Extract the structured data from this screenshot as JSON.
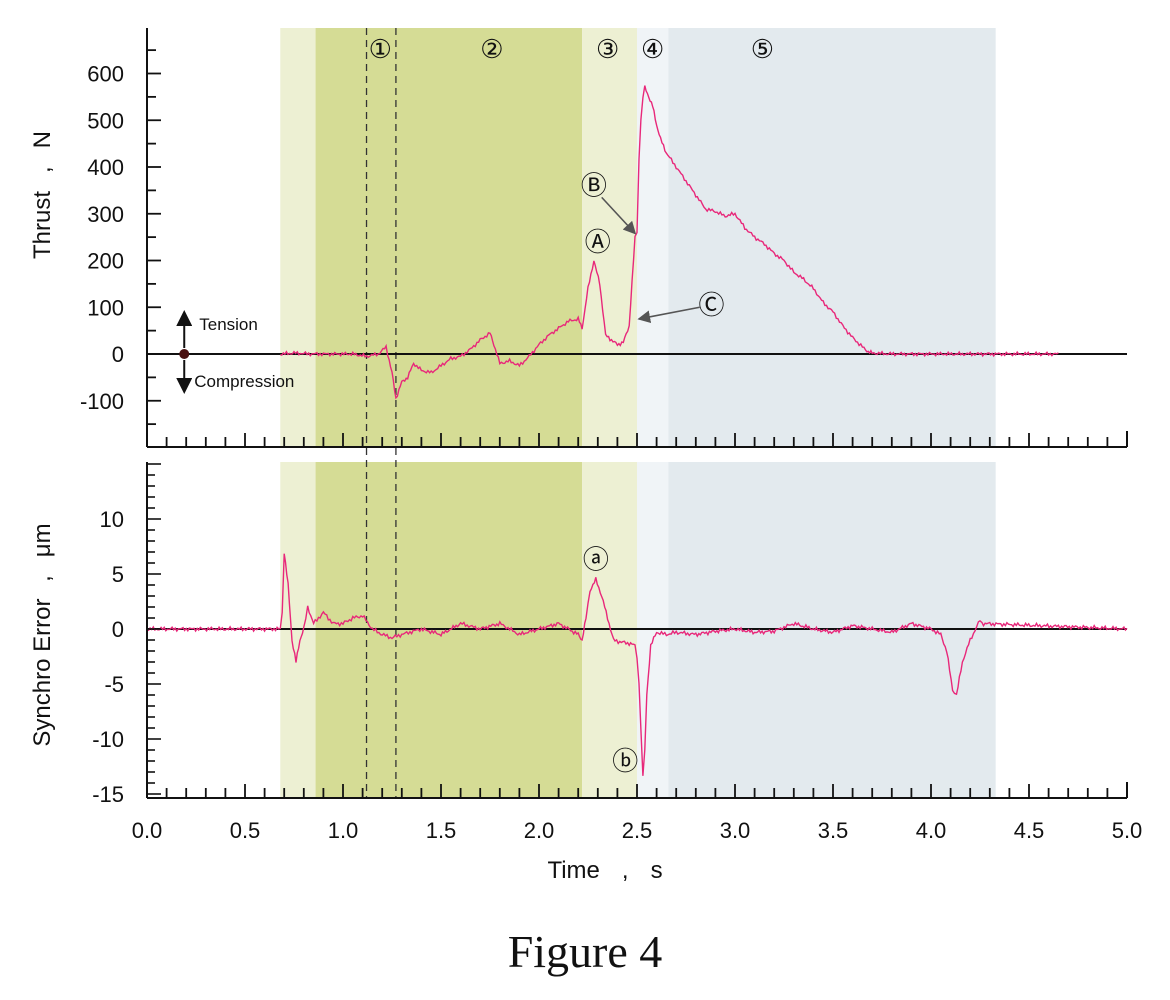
{
  "caption": "Figure 4",
  "colors": {
    "trace": "#e8287a",
    "phase1": "#edf0d3",
    "phase2": "#d5dc95",
    "phase3": "#edf0d3",
    "phase4": "#f0f4f7",
    "phase5": "#e3eaee",
    "axis": "#111111",
    "marker": "#4a1010",
    "arrow": "#555555"
  },
  "phases": [
    {
      "label": "①",
      "start": 0.68,
      "end": 0.86,
      "color_key": "phase1"
    },
    {
      "label": "②",
      "start": 0.86,
      "end": 2.22,
      "color_key": "phase2"
    },
    {
      "label": "③",
      "start": 2.22,
      "end": 2.5,
      "color_key": "phase3"
    },
    {
      "label": "④",
      "start": 2.5,
      "end": 2.66,
      "color_key": "phase4"
    },
    {
      "label": "⑤",
      "start": 2.66,
      "end": 4.33,
      "color_key": "phase5"
    }
  ],
  "dashed_lines_x": [
    1.12,
    1.27
  ],
  "time_axis": {
    "label": "Time",
    "sep": ",",
    "unit": "s",
    "ticks": [
      "0.0",
      "0.5",
      "1.0",
      "1.5",
      "2.0",
      "2.5",
      "3.0",
      "3.5",
      "4.0",
      "4.5",
      "5.0"
    ]
  },
  "chart_data": [
    {
      "type": "line",
      "ylabel": "Thrust",
      "ysep": ",",
      "yunit": "N",
      "xlim": [
        0,
        5
      ],
      "ylim": [
        -200,
        700
      ],
      "yticks": [
        "600",
        "500",
        "400",
        "300",
        "200",
        "100",
        "0",
        "-100"
      ],
      "annotations": [
        {
          "label": "Ⓐ",
          "x": 2.3,
          "y": 240
        },
        {
          "label": "Ⓑ",
          "x": 2.28,
          "y": 360
        },
        {
          "label": "Ⓒ",
          "x": 2.88,
          "y": 105
        }
      ],
      "direction_labels": {
        "up": "Tension",
        "down": "Compression"
      },
      "series": [
        {
          "x": [
            0.68,
            0.75,
            0.85,
            0.95,
            1.05,
            1.12,
            1.18,
            1.22,
            1.25,
            1.27,
            1.3,
            1.33,
            1.36,
            1.4,
            1.45,
            1.5,
            1.55,
            1.6,
            1.65,
            1.7,
            1.75,
            1.77,
            1.8,
            1.85,
            1.9,
            1.95,
            2.0,
            2.05,
            2.1,
            2.15,
            2.2,
            2.22,
            2.25,
            2.28,
            2.31,
            2.34,
            2.37,
            2.4,
            2.43,
            2.46,
            2.49,
            2.5,
            2.51,
            2.52,
            2.53,
            2.54,
            2.56,
            2.58,
            2.6,
            2.62,
            2.65,
            2.7,
            2.75,
            2.8,
            2.85,
            2.9,
            2.95,
            3.0,
            3.05,
            3.1,
            3.15,
            3.2,
            3.25,
            3.3,
            3.35,
            3.4,
            3.45,
            3.5,
            3.55,
            3.6,
            3.65,
            3.68,
            3.7,
            3.8,
            4.0,
            4.2,
            4.4,
            4.6,
            4.65
          ],
          "y": [
            0,
            2,
            0,
            0,
            0,
            -5,
            0,
            15,
            -40,
            -95,
            -60,
            -50,
            -20,
            -35,
            -40,
            -25,
            -10,
            -5,
            10,
            30,
            45,
            20,
            -20,
            -15,
            -25,
            -5,
            20,
            40,
            55,
            70,
            75,
            55,
            140,
            200,
            150,
            40,
            30,
            20,
            25,
            60,
            250,
            260,
            420,
            500,
            550,
            570,
            550,
            530,
            490,
            460,
            430,
            400,
            370,
            340,
            310,
            305,
            295,
            300,
            270,
            250,
            235,
            215,
            200,
            175,
            160,
            140,
            110,
            90,
            60,
            35,
            15,
            5,
            2,
            0,
            0,
            0,
            0,
            0,
            0
          ]
        }
      ]
    },
    {
      "type": "line",
      "ylabel": "Synchro Error",
      "ysep": ",",
      "yunit": "μm",
      "xlim": [
        0,
        5
      ],
      "ylim": [
        -15,
        15
      ],
      "yticks": [
        "10",
        "5",
        "0",
        "-5",
        "-10",
        "-15"
      ],
      "annotations": [
        {
          "label": "ⓐ",
          "x": 2.29,
          "y": 6.3
        },
        {
          "label": "ⓑ",
          "x": 2.44,
          "y": -12
        }
      ],
      "series": [
        {
          "x": [
            0.0,
            0.68,
            0.69,
            0.7,
            0.72,
            0.74,
            0.76,
            0.78,
            0.8,
            0.82,
            0.85,
            0.9,
            0.95,
            1.0,
            1.05,
            1.1,
            1.15,
            1.2,
            1.25,
            1.3,
            1.4,
            1.5,
            1.6,
            1.7,
            1.8,
            1.9,
            2.0,
            2.1,
            2.2,
            2.22,
            2.24,
            2.26,
            2.29,
            2.32,
            2.35,
            2.38,
            2.42,
            2.46,
            2.49,
            2.5,
            2.51,
            2.52,
            2.53,
            2.54,
            2.55,
            2.57,
            2.6,
            2.65,
            2.7,
            2.8,
            2.9,
            3.0,
            3.1,
            3.2,
            3.3,
            3.4,
            3.5,
            3.6,
            3.7,
            3.8,
            3.9,
            4.0,
            4.05,
            4.08,
            4.11,
            4.13,
            4.16,
            4.2,
            4.25,
            4.26,
            5.0
          ],
          "y": [
            0,
            0,
            1.5,
            7.0,
            4.0,
            -1.0,
            -3.0,
            -1.0,
            0,
            2.0,
            0.5,
            1.5,
            0.5,
            0.5,
            1.0,
            1.2,
            0,
            -0.5,
            -0.8,
            -0.5,
            0,
            -0.5,
            0.5,
            0,
            0.5,
            -0.5,
            0,
            0.5,
            -0.5,
            -1.0,
            1.0,
            3.5,
            4.5,
            3.0,
            1.0,
            -1.0,
            -1.2,
            -1.3,
            -1.5,
            -2.5,
            -5,
            -9,
            -13.5,
            -11,
            -6,
            -1.5,
            -0.3,
            -0.5,
            -0.3,
            -0.5,
            -0.2,
            0,
            -0.3,
            -0.2,
            0.5,
            0,
            -0.3,
            0.3,
            0,
            -0.3,
            0.5,
            0,
            -0.5,
            -2.0,
            -5.5,
            -6.0,
            -3.0,
            -1.0,
            0.8,
            0.5,
            0
          ]
        }
      ]
    }
  ]
}
